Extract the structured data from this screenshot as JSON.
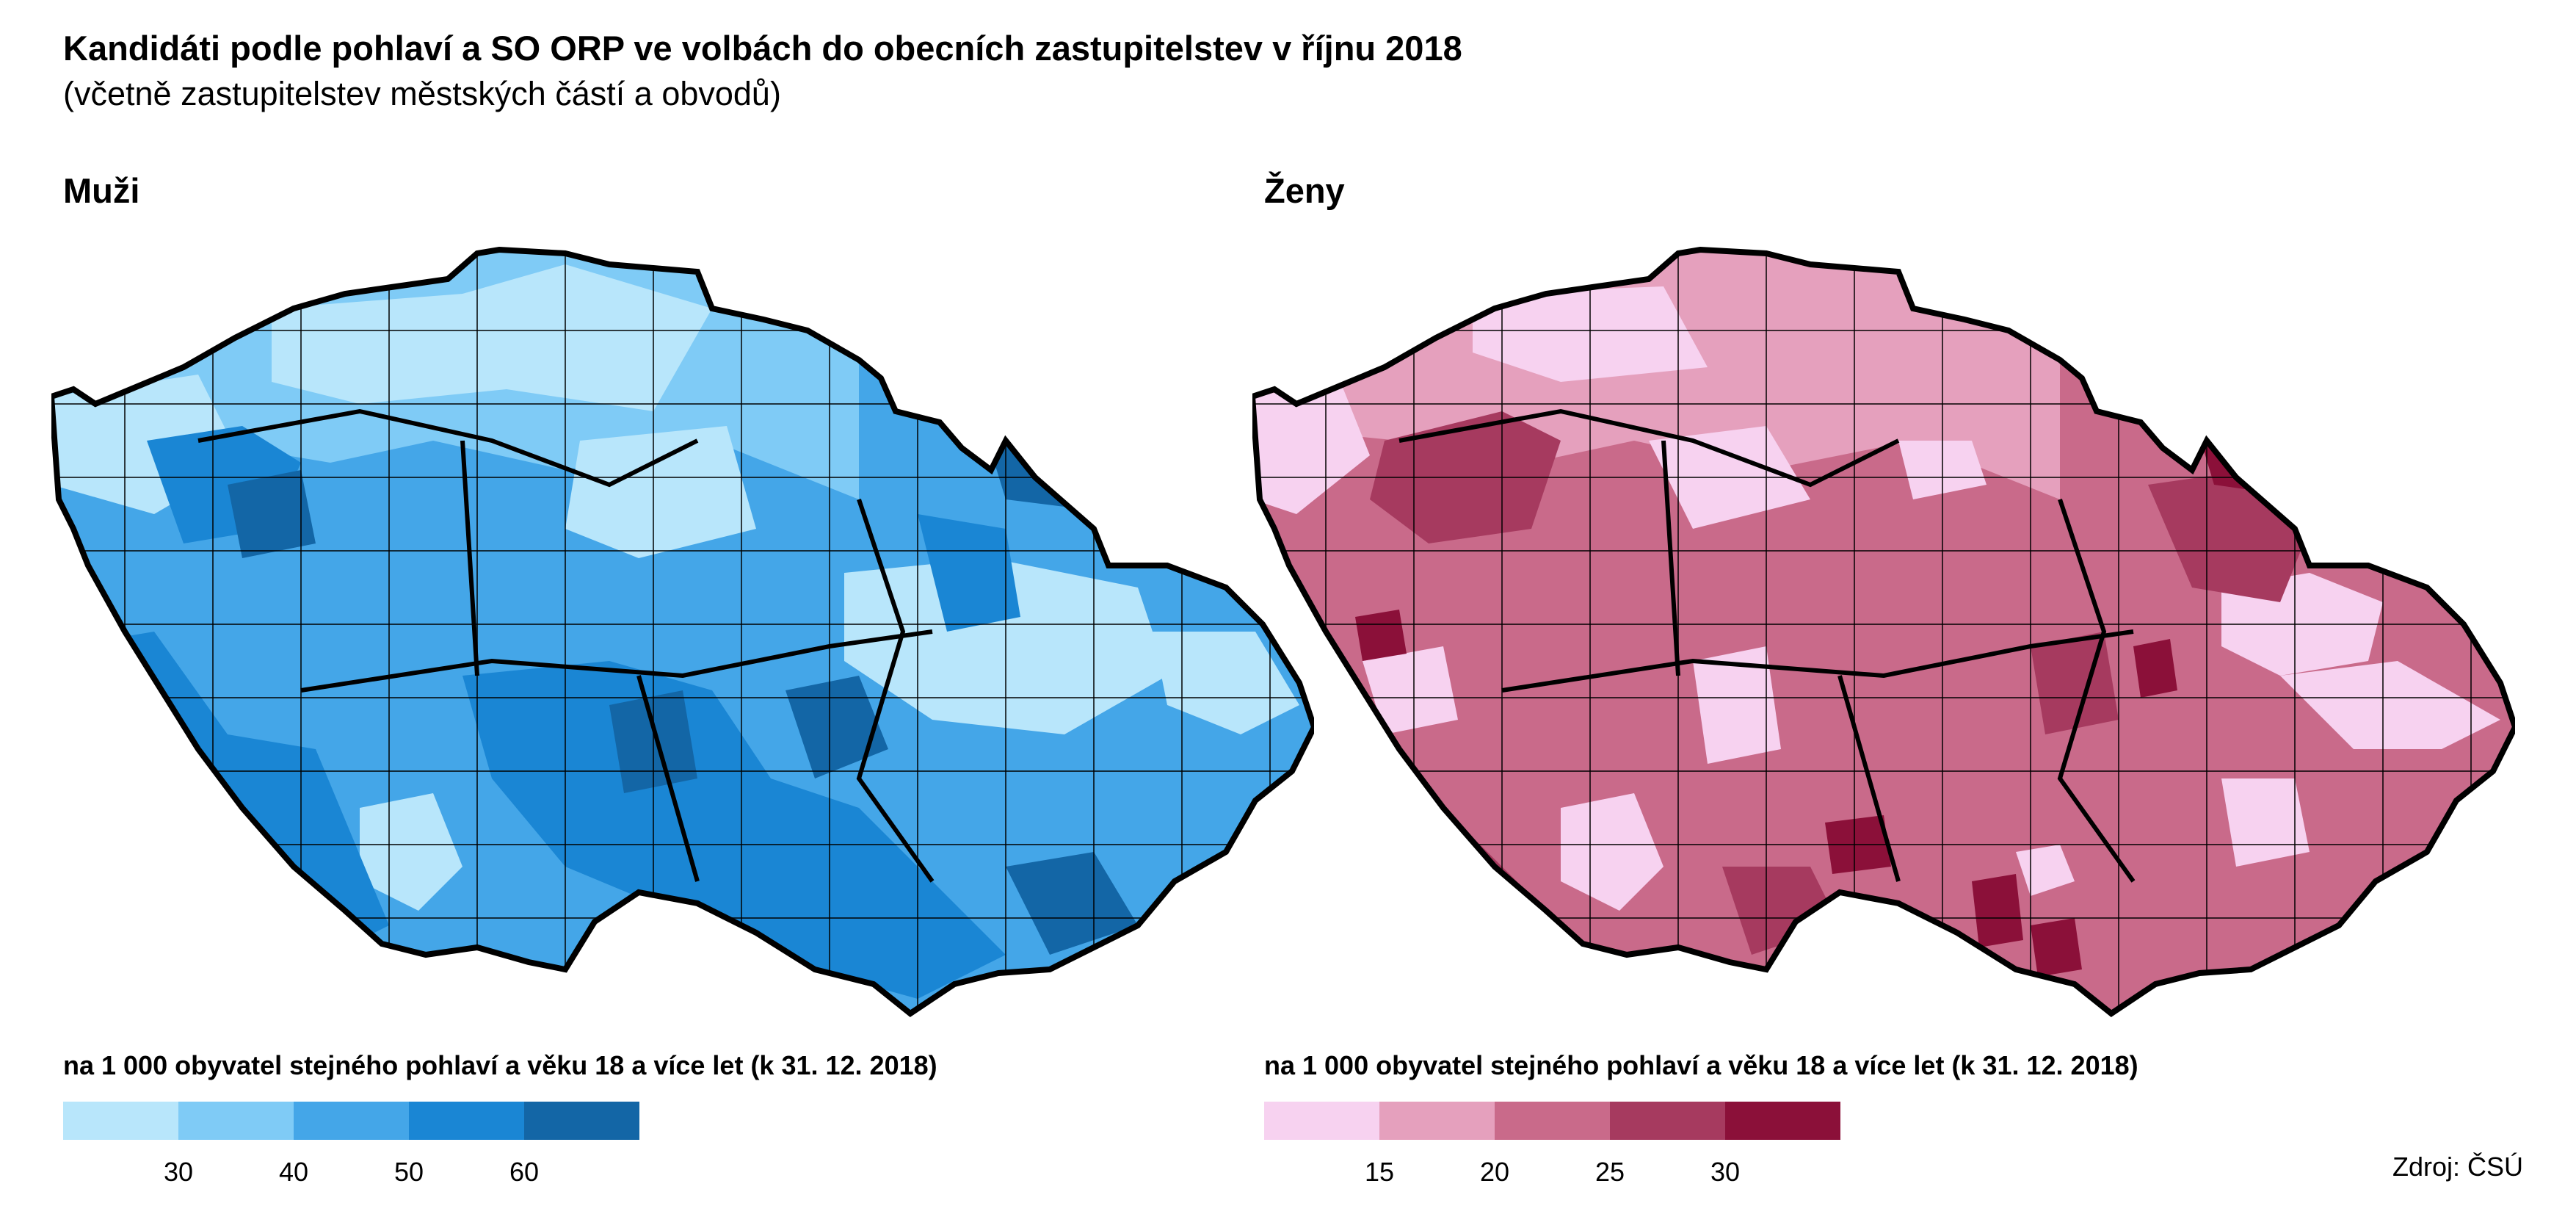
{
  "header": {
    "title": "Kandidáti podle pohlaví a SO ORP ve volbách do obecních zastupitelstev v říjnu 2018",
    "subtitle": "(včetně zastupitelstev městských částí a obvodů)"
  },
  "panels": {
    "men": {
      "title": "Muži",
      "legend_title": "na 1 000 obyvatel stejného pohlaví a věku 18 a více let (k 31. 12. 2018)",
      "breaks": [
        "30",
        "40",
        "50",
        "60"
      ],
      "colors": [
        "#b8e6fb",
        "#7fcbf6",
        "#44a6e8",
        "#1a86d4",
        "#1366a6"
      ]
    },
    "women": {
      "title": "Ženy",
      "legend_title": "na 1 000 obyvatel stejného pohlaví a věku 18 a více let (k 31. 12. 2018)",
      "breaks": [
        "15",
        "20",
        "25",
        "30"
      ],
      "colors": [
        "#f7d2f0",
        "#e5a0bd",
        "#c96a8a",
        "#a63a5f",
        "#8b1039"
      ]
    }
  },
  "source": "Zdroj: ČSÚ"
}
